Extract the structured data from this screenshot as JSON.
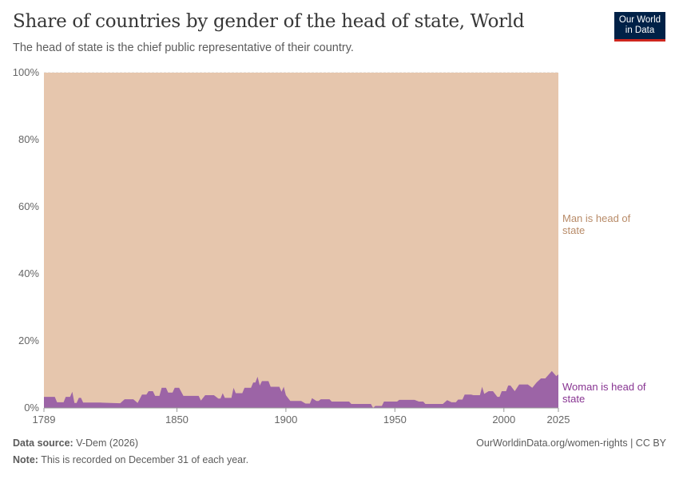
{
  "title": "Share of countries by gender of the head of state, World",
  "subtitle": "The head of state is the chief public representative of their country.",
  "logo": "Our World in Data",
  "footer": {
    "source_label": "Data source:",
    "source": "V-Dem (2026)",
    "note_label": "Note:",
    "note": "This is recorded on December 31 of each year.",
    "url": "OurWorldinData.org/women-rights | CC BY"
  },
  "chart_data": {
    "type": "area",
    "stacked": true,
    "xlim": [
      1789,
      2025
    ],
    "ylim": [
      0,
      100
    ],
    "x_ticks": [
      "1789",
      "1850",
      "1900",
      "1950",
      "2000",
      "2025"
    ],
    "y_ticks": [
      "0%",
      "20%",
      "40%",
      "60%",
      "80%",
      "100%"
    ],
    "colors": {
      "man": "#e6c6ad",
      "woman": "#9c64a6",
      "man_label": "#b88b68",
      "woman_label": "#883592"
    },
    "series": [
      {
        "name": "Woman is head of state",
        "points": [
          [
            1789,
            3.3
          ],
          [
            1794,
            3.3
          ],
          [
            1795,
            1.7
          ],
          [
            1798,
            1.7
          ],
          [
            1799,
            3.3
          ],
          [
            1801,
            3.3
          ],
          [
            1802,
            4.8
          ],
          [
            1803,
            1.5
          ],
          [
            1804,
            1.5
          ],
          [
            1805,
            3
          ],
          [
            1806,
            3
          ],
          [
            1807,
            1.6
          ],
          [
            1815,
            1.6
          ],
          [
            1824,
            1.4
          ],
          [
            1826,
            2.6
          ],
          [
            1830,
            2.6
          ],
          [
            1832,
            1.5
          ],
          [
            1834,
            4
          ],
          [
            1836,
            4
          ],
          [
            1837,
            5
          ],
          [
            1839,
            5
          ],
          [
            1840,
            3.6
          ],
          [
            1842,
            3.6
          ],
          [
            1843,
            6
          ],
          [
            1845,
            6
          ],
          [
            1846,
            4.6
          ],
          [
            1848,
            4.6
          ],
          [
            1849,
            6
          ],
          [
            1851,
            6
          ],
          [
            1853,
            3.6
          ],
          [
            1860,
            3.6
          ],
          [
            1861,
            2.2
          ],
          [
            1863,
            3.8
          ],
          [
            1867,
            3.8
          ],
          [
            1869,
            2.8
          ],
          [
            1870,
            2.8
          ],
          [
            1871,
            4.4
          ],
          [
            1872,
            3
          ],
          [
            1875,
            3
          ],
          [
            1876,
            6
          ],
          [
            1877,
            4.4
          ],
          [
            1880,
            4.4
          ],
          [
            1881,
            6
          ],
          [
            1884,
            6
          ],
          [
            1885,
            7.6
          ],
          [
            1886,
            7.6
          ],
          [
            1887,
            9.3
          ],
          [
            1888,
            6.7
          ],
          [
            1889,
            8
          ],
          [
            1892,
            8
          ],
          [
            1893,
            6.3
          ],
          [
            1897,
            6.3
          ],
          [
            1898,
            4.8
          ],
          [
            1899,
            6.3
          ],
          [
            1900,
            3.8
          ],
          [
            1902,
            2.1
          ],
          [
            1907,
            2.1
          ],
          [
            1909,
            1.3
          ],
          [
            1911,
            1.3
          ],
          [
            1912,
            2.9
          ],
          [
            1914,
            2.1
          ],
          [
            1915,
            2.1
          ],
          [
            1916,
            2.6
          ],
          [
            1920,
            2.6
          ],
          [
            1921,
            1.9
          ],
          [
            1929,
            1.9
          ],
          [
            1930,
            1.2
          ],
          [
            1939,
            1.2
          ],
          [
            1940,
            0
          ],
          [
            1941,
            0.6
          ],
          [
            1944,
            0.6
          ],
          [
            1945,
            1.9
          ],
          [
            1951,
            1.9
          ],
          [
            1952,
            2.4
          ],
          [
            1959,
            2.4
          ],
          [
            1961,
            1.9
          ],
          [
            1963,
            1.9
          ],
          [
            1964,
            1.2
          ],
          [
            1972,
            1.2
          ],
          [
            1974,
            2.3
          ],
          [
            1976,
            1.7
          ],
          [
            1978,
            1.7
          ],
          [
            1979,
            2.5
          ],
          [
            1981,
            2.5
          ],
          [
            1982,
            4
          ],
          [
            1985,
            4
          ],
          [
            1986,
            3.8
          ],
          [
            1989,
            3.8
          ],
          [
            1990,
            6.3
          ],
          [
            1991,
            4.2
          ],
          [
            1993,
            5
          ],
          [
            1995,
            5
          ],
          [
            1997,
            3.3
          ],
          [
            1998,
            3.3
          ],
          [
            1999,
            5
          ],
          [
            2001,
            5
          ],
          [
            2002,
            6.7
          ],
          [
            2003,
            6.7
          ],
          [
            2005,
            5
          ],
          [
            2007,
            7
          ],
          [
            2011,
            7
          ],
          [
            2013,
            6
          ],
          [
            2015,
            7.6
          ],
          [
            2017,
            8.8
          ],
          [
            2019,
            8.8
          ],
          [
            2022,
            11
          ],
          [
            2024,
            9.5
          ],
          [
            2025,
            10
          ]
        ]
      },
      {
        "name": "Man is head of state",
        "remainder_to": 100
      }
    ],
    "labels": {
      "man": "Man is head of state",
      "woman": "Woman is head of state"
    }
  }
}
